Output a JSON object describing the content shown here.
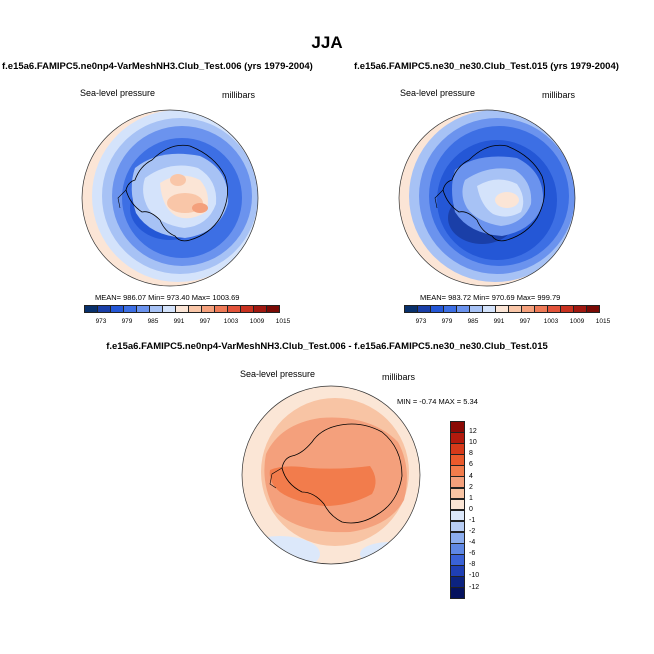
{
  "page_title": "JJA",
  "panels": [
    {
      "run": "f.e15a6.FAMIPC5.ne0np4-VarMeshNH3.Club_Test.006 (yrs 1979-2004)",
      "variable": "Sea-level pressure",
      "units": "millibars",
      "stats": "MEAN= 986.07  Min= 973.40  Max= 1003.69"
    },
    {
      "run": "f.e15a6.FAMIPC5.ne30_ne30.Club_Test.015 (yrs 1979-2004)",
      "variable": "Sea-level pressure",
      "units": "millibars",
      "stats": "MEAN= 983.72  Min= 970.69  Max= 999.79"
    }
  ],
  "abs_colorbar": {
    "ticks": [
      "973",
      "979",
      "985",
      "991",
      "997",
      "1003",
      "1009",
      "1015"
    ],
    "colors": [
      "#08306b",
      "#1a3fa8",
      "#2457d6",
      "#3d6fe4",
      "#6b93ee",
      "#a7c2f5",
      "#d4e3fb",
      "#fbe5d6",
      "#f9c6a8",
      "#f4a07c",
      "#ee7a57",
      "#e2533a",
      "#c8311f",
      "#a01810",
      "#7a0a05"
    ]
  },
  "diff_panel": {
    "title": "f.e15a6.FAMIPC5.ne0np4-VarMeshNH3.Club_Test.006 - f.e15a6.FAMIPC5.ne30_ne30.Club_Test.015",
    "variable": "Sea-level pressure",
    "units": "millibars",
    "stats": "MIN = -0.74 MAX = 5.34"
  },
  "diff_colorbar": {
    "ticks": [
      "12",
      "10",
      "8",
      "6",
      "4",
      "2",
      "1",
      "0",
      "-1",
      "-2",
      "-4",
      "-6",
      "-8",
      "-10",
      "-12"
    ],
    "colors": [
      "#8b0a05",
      "#b31a0d",
      "#d63a1a",
      "#ea5a2c",
      "#f27c4c",
      "#f4a07c",
      "#f8c4a4",
      "#fbe6d6",
      "#dce8fa",
      "#b9cef4",
      "#8cadee",
      "#5f88e4",
      "#3a62d6",
      "#1f3fb4",
      "#0c2380",
      "#05125e"
    ]
  }
}
